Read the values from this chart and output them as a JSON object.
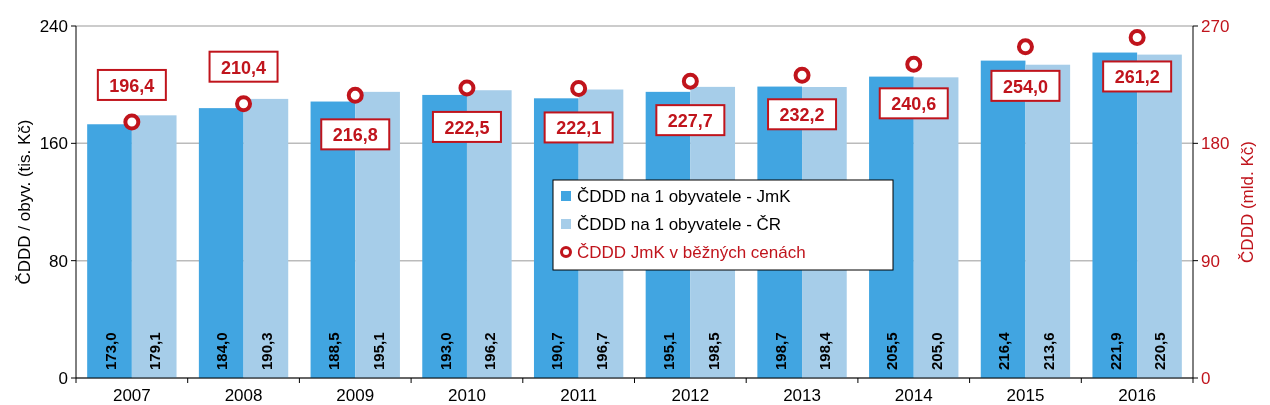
{
  "chart_data": {
    "type": "bar",
    "ylabel": "ČDDD / obyv. (tis. Kč)",
    "y2label": "ČDDD  (mld. Kč)",
    "categories": [
      "2007",
      "2008",
      "2009",
      "2010",
      "2011",
      "2012",
      "2013",
      "2014",
      "2015",
      "2016"
    ],
    "ylim": [
      0,
      240
    ],
    "yticks": [
      0,
      80,
      160,
      240
    ],
    "y2lim": [
      0,
      270
    ],
    "y2ticks": [
      0,
      90,
      180,
      270
    ],
    "grid": "y",
    "legend": "center",
    "series": [
      {
        "name": "ČDDD na 1 obyvatele - JmK",
        "color": "#41a5e1",
        "values": [
          173.0,
          184.0,
          188.5,
          193.0,
          190.7,
          195.1,
          198.7,
          205.5,
          216.4,
          221.9
        ],
        "value_labels": [
          "173,0",
          "184,0",
          "188,5",
          "193,0",
          "190,7",
          "195,1",
          "198,7",
          "205,5",
          "216,4",
          "221,9"
        ]
      },
      {
        "name": "ČDDD na 1 obyvatele - ČR",
        "color": "#a6cde9",
        "values": [
          179.1,
          190.3,
          195.1,
          196.2,
          196.7,
          198.5,
          198.4,
          205.0,
          213.6,
          220.5
        ],
        "value_labels": [
          "179,1",
          "190,3",
          "195,1",
          "196,2",
          "196,7",
          "198,5",
          "198,4",
          "205,0",
          "213,6",
          "220,5"
        ]
      },
      {
        "name": "ČDDD JmK v běžných cenách",
        "type": "scatter",
        "axis": "y2",
        "color": "#c0141c",
        "marker": "circle",
        "values": [
          196.4,
          210.4,
          216.8,
          222.5,
          222.1,
          227.7,
          232.2,
          240.6,
          254.0,
          261.2
        ],
        "value_labels": [
          "196,4",
          "210,4",
          "216,8",
          "222,5",
          "222,1",
          "227,7",
          "232,2",
          "240,6",
          "254,0",
          "261,2"
        ]
      }
    ]
  }
}
